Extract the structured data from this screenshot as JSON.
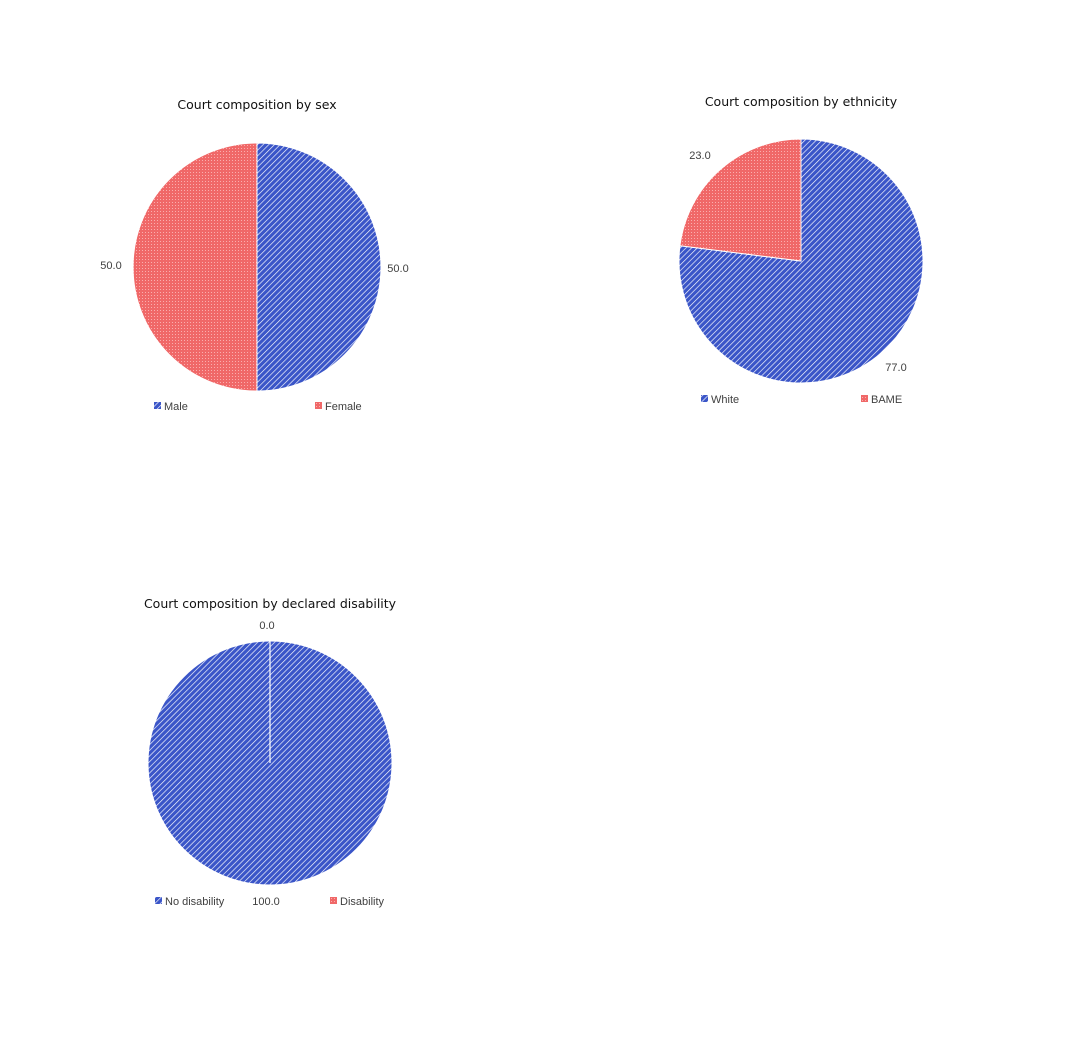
{
  "colors": {
    "blue": "#3a55c8",
    "red": "#f06868"
  },
  "chart_data": [
    {
      "type": "pie",
      "title": "Court composition by sex",
      "slices": [
        {
          "label": "Male",
          "value": 50.0,
          "value_label": "50.0",
          "color": "#3a55c8",
          "pattern": "diagonal-hatch"
        },
        {
          "label": "Female",
          "value": 50.0,
          "value_label": "50.0",
          "color": "#f06868",
          "pattern": "dots"
        }
      ],
      "legend": "bottom"
    },
    {
      "type": "pie",
      "title": "Court composition by ethnicity",
      "slices": [
        {
          "label": "White",
          "value": 77.0,
          "value_label": "77.0",
          "color": "#3a55c8",
          "pattern": "diagonal-hatch"
        },
        {
          "label": "BAME",
          "value": 23.0,
          "value_label": "23.0",
          "color": "#f06868",
          "pattern": "dots"
        }
      ],
      "legend": "bottom"
    },
    {
      "type": "pie",
      "title": "Court composition by declared disability",
      "slices": [
        {
          "label": "No disability",
          "value": 100.0,
          "value_label": "100.0",
          "color": "#3a55c8",
          "pattern": "diagonal-hatch"
        },
        {
          "label": "Disability",
          "value": 0.0,
          "value_label": "0.0",
          "color": "#f06868",
          "pattern": "dots"
        }
      ],
      "legend": "bottom"
    }
  ]
}
